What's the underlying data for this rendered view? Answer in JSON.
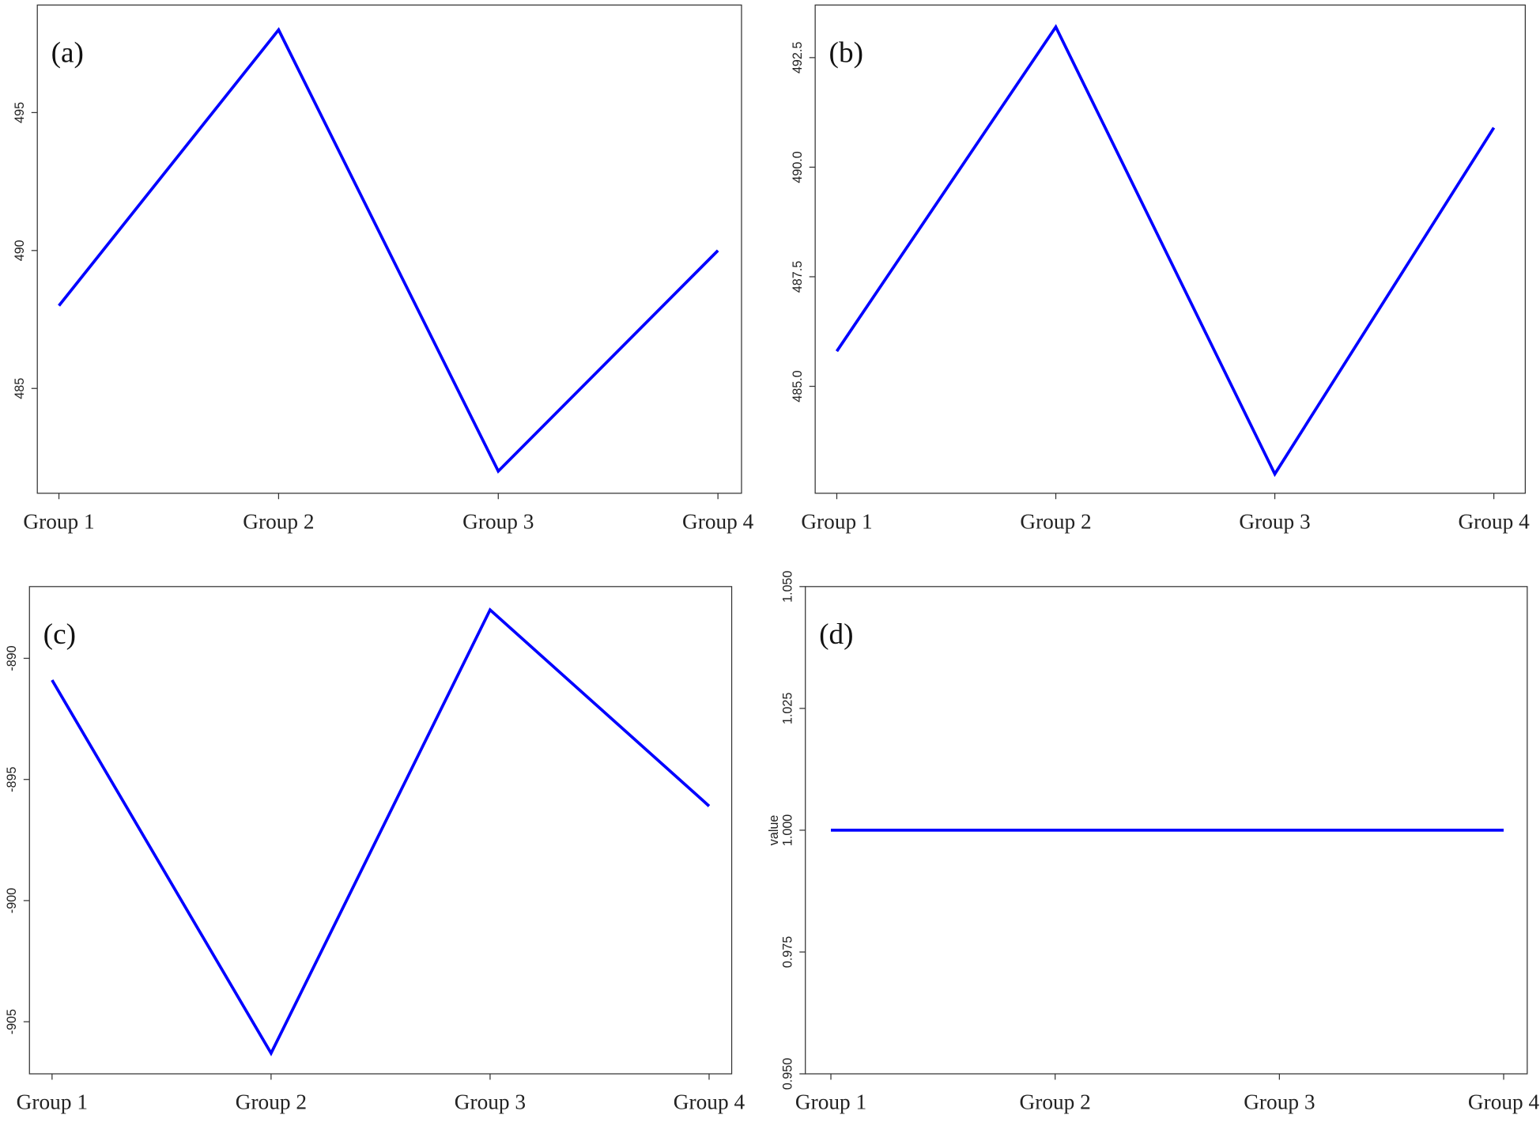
{
  "chart_data": [
    {
      "type": "line",
      "title": "(a)",
      "categories": [
        "Group 1",
        "Group 2",
        "Group 3",
        "Group 4"
      ],
      "series": [
        {
          "color": "#0000ff",
          "values": [
            488,
            498,
            482,
            490
          ]
        }
      ],
      "ylim": [
        481.2,
        498.9
      ],
      "yticks": [
        485,
        490,
        495
      ]
    },
    {
      "type": "line",
      "title": "(b)",
      "categories": [
        "Group 1",
        "Group 2",
        "Group 3",
        "Group 4"
      ],
      "series": [
        {
          "color": "#0000ff",
          "values": [
            485.8,
            493.2,
            483.0,
            490.9
          ]
        }
      ],
      "ylim": [
        482.56,
        493.7
      ],
      "yticks": [
        {
          "value": 485,
          "label": "485.0"
        },
        487.5,
        {
          "value": 490,
          "label": "490.0"
        },
        492.5
      ]
    },
    {
      "type": "line",
      "title": "(c)",
      "categories": [
        "Group 1",
        "Group 2",
        "Group 3",
        "Group 4"
      ],
      "series": [
        {
          "color": "#0000ff",
          "values": [
            -890.9,
            -906.3,
            -888.0,
            -896.1
          ]
        }
      ],
      "ylim": [
        -907.15,
        -887.04
      ],
      "yticks": [
        -905,
        -900,
        -895,
        -890
      ]
    },
    {
      "type": "line",
      "title": "(d)",
      "categories": [
        "Group 1",
        "Group 2",
        "Group 3",
        "Group 4"
      ],
      "series": [
        {
          "color": "#0000ff",
          "values": [
            1,
            1,
            1,
            1
          ]
        }
      ],
      "ylabel": "value",
      "ylim": [
        0.95,
        1.05
      ],
      "yticks": [
        {
          "value": 0.95,
          "label": "0.950"
        },
        0.975,
        {
          "value": 1,
          "label": "1.000"
        },
        1.025,
        {
          "value": 1.05,
          "label": "1.050"
        }
      ]
    }
  ]
}
